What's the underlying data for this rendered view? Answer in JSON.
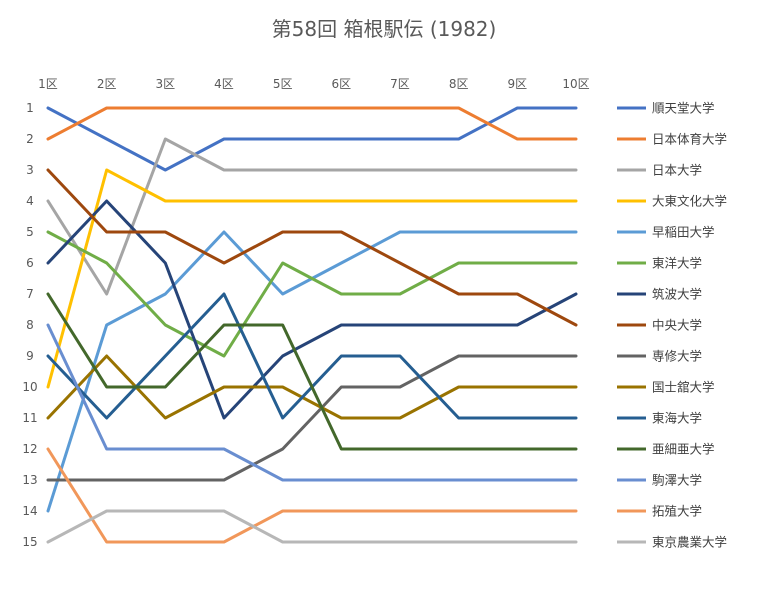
{
  "chart_data": {
    "type": "line",
    "title": "第58回 箱根駅伝 (1982)",
    "categories": [
      "1区",
      "2区",
      "3区",
      "4区",
      "5区",
      "6区",
      "7区",
      "8区",
      "9区",
      "10区"
    ],
    "y_ticks": [
      "1",
      "2",
      "3",
      "4",
      "5",
      "6",
      "7",
      "8",
      "9",
      "10",
      "11",
      "12",
      "13",
      "14",
      "15"
    ],
    "ylim": [
      1,
      15
    ],
    "y_reversed": true,
    "x_axis_position": "top",
    "legend_position": "right",
    "grid": false,
    "series": [
      {
        "name": "順天堂大学",
        "color": "#4472C4",
        "values": [
          1,
          2,
          3,
          2,
          2,
          2,
          2,
          2,
          1,
          1
        ]
      },
      {
        "name": "日本体育大学",
        "color": "#ED7D31",
        "values": [
          2,
          1,
          1,
          1,
          1,
          1,
          1,
          1,
          2,
          2
        ]
      },
      {
        "name": "日本大学",
        "color": "#A5A5A5",
        "values": [
          4,
          7,
          2,
          3,
          3,
          3,
          3,
          3,
          3,
          3
        ]
      },
      {
        "name": "大東文化大学",
        "color": "#FFC000",
        "values": [
          10,
          3,
          4,
          4,
          4,
          4,
          4,
          4,
          4,
          4
        ]
      },
      {
        "name": "早稲田大学",
        "color": "#5B9BD5",
        "values": [
          14,
          8,
          7,
          5,
          7,
          6,
          5,
          5,
          5,
          5
        ]
      },
      {
        "name": "東洋大学",
        "color": "#70AD47",
        "values": [
          5,
          6,
          8,
          9,
          6,
          7,
          7,
          6,
          6,
          6
        ]
      },
      {
        "name": "筑波大学",
        "color": "#264478",
        "values": [
          6,
          4,
          6,
          11,
          9,
          8,
          8,
          8,
          8,
          7
        ]
      },
      {
        "name": "中央大学",
        "color": "#9E480E",
        "values": [
          3,
          5,
          5,
          6,
          5,
          5,
          6,
          7,
          7,
          8
        ]
      },
      {
        "name": "専修大学",
        "color": "#636363",
        "values": [
          13,
          13,
          13,
          13,
          12,
          10,
          10,
          9,
          9,
          9
        ]
      },
      {
        "name": "国士舘大学",
        "color": "#997300",
        "values": [
          11,
          9,
          11,
          10,
          10,
          11,
          11,
          10,
          10,
          10
        ]
      },
      {
        "name": "東海大学",
        "color": "#255E91",
        "values": [
          9,
          11,
          9,
          7,
          11,
          9,
          9,
          11,
          11,
          11
        ]
      },
      {
        "name": "亜細亜大学",
        "color": "#43682B",
        "values": [
          7,
          10,
          10,
          8,
          8,
          12,
          12,
          12,
          12,
          12
        ]
      },
      {
        "name": "駒澤大学",
        "color": "#698ED0",
        "values": [
          8,
          12,
          12,
          12,
          13,
          13,
          13,
          13,
          13,
          13
        ]
      },
      {
        "name": "拓殖大学",
        "color": "#F1975A",
        "values": [
          12,
          15,
          15,
          15,
          14,
          14,
          14,
          14,
          14,
          14
        ]
      },
      {
        "name": "東京農業大学",
        "color": "#B7B7B7",
        "values": [
          15,
          14,
          14,
          14,
          15,
          15,
          15,
          15,
          15,
          15
        ]
      }
    ]
  }
}
